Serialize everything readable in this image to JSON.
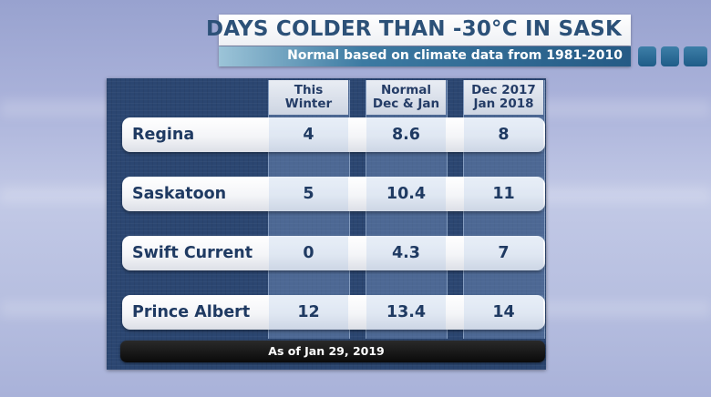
{
  "title": "DAYS COLDER THAN -30°C IN SASK",
  "subtitle": "Normal based on climate data from 1981-2010",
  "colors": {
    "title_text": "#2c5178",
    "panel": "#2b4671",
    "subtitle_bar": "#255a85",
    "row_text": "#1f3a62"
  },
  "columns": [
    {
      "line1": "This",
      "line2": "Winter"
    },
    {
      "line1": "Normal",
      "line2": "Dec & Jan"
    },
    {
      "line1": "Dec 2017",
      "line2": "Jan 2018"
    }
  ],
  "rows": [
    {
      "city": "Regina",
      "values": [
        "4",
        "8.6",
        "8"
      ]
    },
    {
      "city": "Saskatoon",
      "values": [
        "5",
        "10.4",
        "11"
      ]
    },
    {
      "city": "Swift Current",
      "values": [
        "0",
        "4.3",
        "7"
      ]
    },
    {
      "city": "Prince Albert",
      "values": [
        "12",
        "13.4",
        "14"
      ]
    }
  ],
  "footer": "As of Jan 29, 2019"
}
